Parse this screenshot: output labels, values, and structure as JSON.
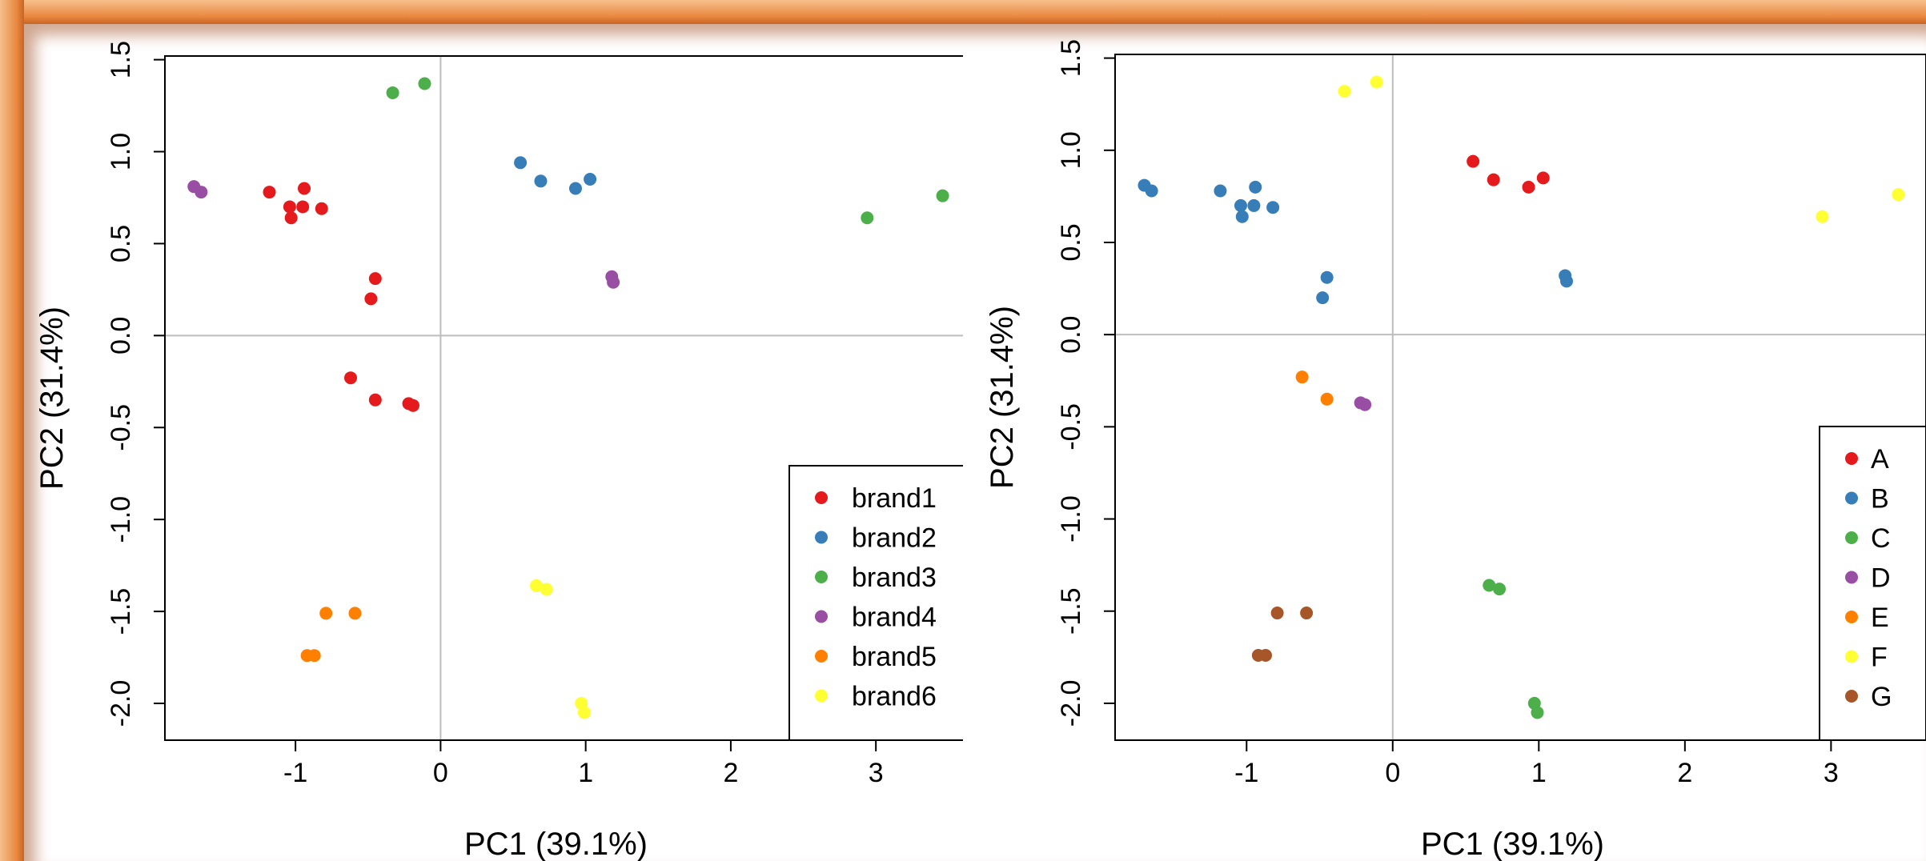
{
  "chart_data": [
    {
      "type": "scatter",
      "xlabel": "PC1 (39.1%)",
      "ylabel": "PC2 (31.4%)",
      "xlim": [
        -1.9,
        3.65
      ],
      "ylim": [
        -2.2,
        1.52
      ],
      "xticks": [
        -1,
        0,
        1,
        2,
        3
      ],
      "yticks": [
        -2.0,
        -1.5,
        -1.0,
        -0.5,
        0.0,
        0.5,
        1.0,
        1.5
      ],
      "ytick_labels": [
        "-2.0",
        "-1.5",
        "-1.0",
        "-0.5",
        "0.0",
        "0.5",
        "1.0",
        "1.5"
      ],
      "grid": false,
      "reference_lines": [
        {
          "axis": "x",
          "value": 0
        },
        {
          "axis": "y",
          "value": 0
        }
      ],
      "legend_position": "bottom-right",
      "series": [
        {
          "name": "brand1",
          "color": "#e41a1c",
          "points": [
            [
              -1.18,
              0.78
            ],
            [
              -1.04,
              0.7
            ],
            [
              -0.94,
              0.8
            ],
            [
              -0.95,
              0.7
            ],
            [
              -1.03,
              0.64
            ],
            [
              -0.82,
              0.69
            ],
            [
              -0.45,
              0.31
            ],
            [
              -0.48,
              0.2
            ],
            [
              -0.62,
              -0.23
            ],
            [
              -0.45,
              -0.35
            ],
            [
              -0.22,
              -0.37
            ],
            [
              -0.19,
              -0.38
            ]
          ]
        },
        {
          "name": "brand2",
          "color": "#377eb8",
          "points": [
            [
              0.55,
              0.94
            ],
            [
              0.69,
              0.84
            ],
            [
              0.93,
              0.8
            ],
            [
              1.03,
              0.85
            ]
          ]
        },
        {
          "name": "brand3",
          "color": "#4daf4a",
          "points": [
            [
              -0.33,
              1.32
            ],
            [
              -0.11,
              1.37
            ],
            [
              2.94,
              0.64
            ],
            [
              3.46,
              0.76
            ]
          ]
        },
        {
          "name": "brand4",
          "color": "#984ea3",
          "points": [
            [
              -1.7,
              0.81
            ],
            [
              -1.65,
              0.78
            ],
            [
              1.18,
              0.32
            ],
            [
              1.19,
              0.29
            ]
          ]
        },
        {
          "name": "brand5",
          "color": "#ff7f00",
          "points": [
            [
              -0.79,
              -1.51
            ],
            [
              -0.59,
              -1.51
            ],
            [
              -0.92,
              -1.74
            ],
            [
              -0.87,
              -1.74
            ]
          ]
        },
        {
          "name": "brand6",
          "color": "#ffff33",
          "points": [
            [
              0.66,
              -1.36
            ],
            [
              0.73,
              -1.38
            ],
            [
              0.97,
              -2.0
            ],
            [
              0.99,
              -2.05
            ]
          ]
        }
      ]
    },
    {
      "type": "scatter",
      "xlabel": "PC1 (39.1%)",
      "ylabel": "PC2 (31.4%)",
      "xlim": [
        -1.9,
        3.65
      ],
      "ylim": [
        -2.2,
        1.52
      ],
      "xticks": [
        -1,
        0,
        1,
        2,
        3
      ],
      "yticks": [
        -2.0,
        -1.5,
        -1.0,
        -0.5,
        0.0,
        0.5,
        1.0,
        1.5
      ],
      "ytick_labels": [
        "-2.0",
        "-1.5",
        "-1.0",
        "-0.5",
        "0.0",
        "0.5",
        "1.0",
        "1.5"
      ],
      "grid": false,
      "reference_lines": [
        {
          "axis": "x",
          "value": 0
        },
        {
          "axis": "y",
          "value": 0
        }
      ],
      "legend_position": "bottom-right",
      "series": [
        {
          "name": "A",
          "color": "#e41a1c",
          "points": [
            [
              0.55,
              0.94
            ],
            [
              0.69,
              0.84
            ],
            [
              0.93,
              0.8
            ],
            [
              1.03,
              0.85
            ]
          ]
        },
        {
          "name": "B",
          "color": "#377eb8",
          "points": [
            [
              -1.7,
              0.81
            ],
            [
              -1.65,
              0.78
            ],
            [
              -1.18,
              0.78
            ],
            [
              -1.04,
              0.7
            ],
            [
              -0.94,
              0.8
            ],
            [
              -0.95,
              0.7
            ],
            [
              -1.03,
              0.64
            ],
            [
              -0.82,
              0.69
            ],
            [
              -0.45,
              0.31
            ],
            [
              -0.48,
              0.2
            ],
            [
              1.18,
              0.32
            ],
            [
              1.19,
              0.29
            ]
          ]
        },
        {
          "name": "C",
          "color": "#4daf4a",
          "points": [
            [
              0.66,
              -1.36
            ],
            [
              0.73,
              -1.38
            ],
            [
              0.97,
              -2.0
            ],
            [
              0.99,
              -2.05
            ]
          ]
        },
        {
          "name": "D",
          "color": "#984ea3",
          "points": [
            [
              -0.22,
              -0.37
            ],
            [
              -0.19,
              -0.38
            ]
          ]
        },
        {
          "name": "E",
          "color": "#ff7f00",
          "points": [
            [
              -0.62,
              -0.23
            ],
            [
              -0.45,
              -0.35
            ]
          ]
        },
        {
          "name": "F",
          "color": "#ffff33",
          "points": [
            [
              -0.33,
              1.32
            ],
            [
              -0.11,
              1.37
            ],
            [
              2.94,
              0.64
            ],
            [
              3.46,
              0.76
            ]
          ]
        },
        {
          "name": "G",
          "color": "#a65628",
          "points": [
            [
              -0.79,
              -1.51
            ],
            [
              -0.59,
              -1.51
            ],
            [
              -0.92,
              -1.74
            ],
            [
              -0.87,
              -1.74
            ]
          ]
        }
      ]
    }
  ]
}
